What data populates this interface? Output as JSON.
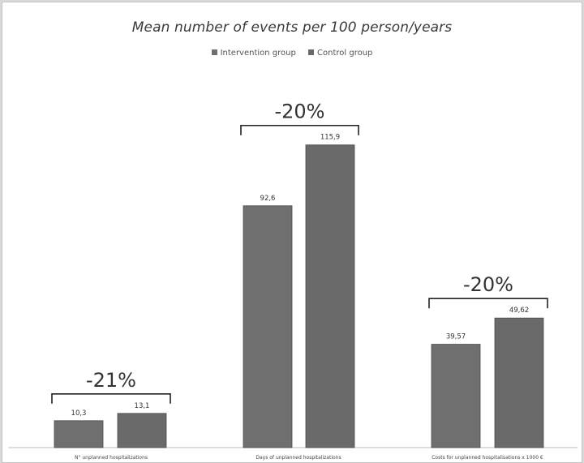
{
  "chart_data": {
    "type": "bar",
    "title": "Mean number of events per 100 person/years",
    "categories": [
      "N° unplanned hospitalizations",
      "Days of unplanned hospitalizations",
      "Costs for unplanned hospitalisations x 1000 €"
    ],
    "series": [
      {
        "name": "Intervention group",
        "color": "#6f6f6f",
        "values": [
          10.3,
          92.6,
          39.57
        ],
        "labels": [
          "10,3",
          "92,6",
          "39,57"
        ]
      },
      {
        "name": "Control group",
        "color": "#6a6a6a",
        "values": [
          13.1,
          115.9,
          49.62
        ],
        "labels": [
          "13,1",
          "115,9",
          "49,62"
        ]
      }
    ],
    "annotations": [
      "-21%",
      "-20%",
      "-20%"
    ],
    "ylim": [
      0,
      127
    ],
    "grid": false,
    "legend_position": "top-center",
    "xlabel": "",
    "ylabel": ""
  }
}
